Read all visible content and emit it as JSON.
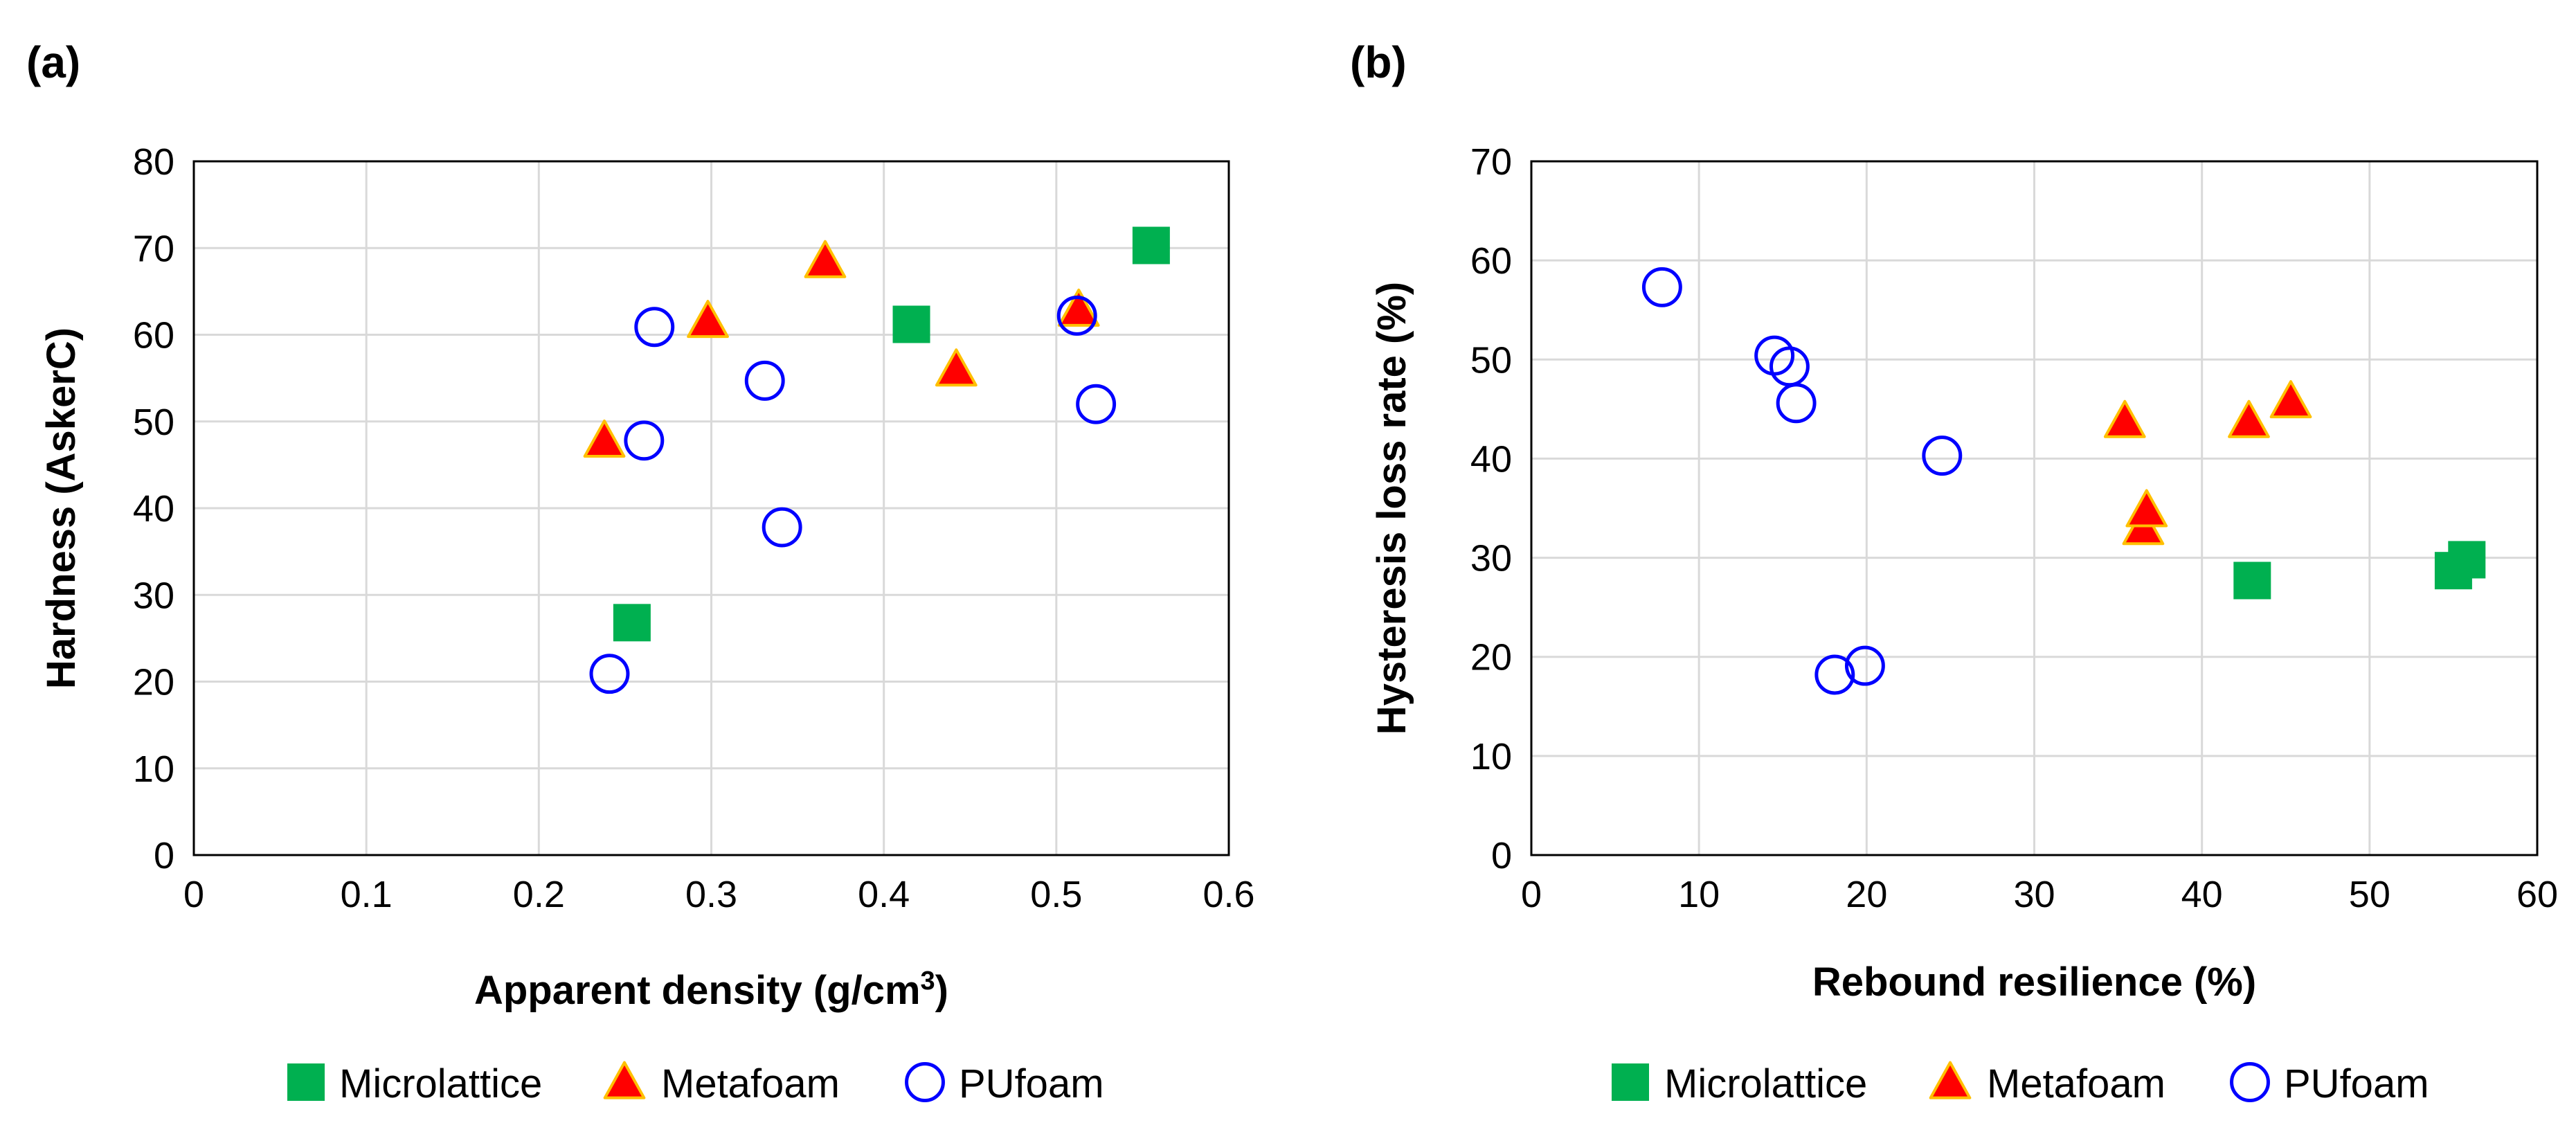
{
  "chart_data": [
    {
      "type": "scatter",
      "panel_label": "(a)",
      "xlabel": "Apparent density (g/cm",
      "xlabel_sup": "3",
      "xlabel_end": ")",
      "ylabel": "Hardness (AskerC)",
      "xlim": [
        0,
        0.6
      ],
      "ylim": [
        0,
        80
      ],
      "xticks": [
        "0",
        "0.1",
        "0.2",
        "0.3",
        "0.4",
        "0.5",
        "0.6"
      ],
      "yticks": [
        "0",
        "10",
        "20",
        "30",
        "40",
        "50",
        "60",
        "70",
        "80"
      ],
      "grid": true,
      "legend_position": "bottom",
      "series": [
        {
          "name": "Microlattice",
          "marker": "square",
          "color": "#00b050",
          "points": [
            [
              0.254,
              26.8
            ],
            [
              0.416,
              61.2
            ],
            [
              0.555,
              70.3
            ]
          ]
        },
        {
          "name": "Metafoam",
          "marker": "triangle",
          "color": "#ff0000",
          "points": [
            [
              0.238,
              47.8
            ],
            [
              0.298,
              61.6
            ],
            [
              0.366,
              68.5
            ],
            [
              0.442,
              56.0
            ],
            [
              0.513,
              62.9
            ]
          ]
        },
        {
          "name": "PUfoam",
          "marker": "circle",
          "color": "#0000ff",
          "points": [
            [
              0.241,
              20.9
            ],
            [
              0.261,
              47.8
            ],
            [
              0.267,
              60.9
            ],
            [
              0.331,
              54.7
            ],
            [
              0.341,
              37.8
            ],
            [
              0.512,
              62.2
            ],
            [
              0.523,
              52.0
            ]
          ]
        }
      ]
    },
    {
      "type": "scatter",
      "panel_label": "(b)",
      "xlabel": "Rebound resilience (%)",
      "ylabel": "Hysteresis loss rate (%)",
      "xlim": [
        0,
        60
      ],
      "ylim": [
        0,
        70
      ],
      "xticks": [
        "0",
        "10",
        "20",
        "30",
        "40",
        "50",
        "60"
      ],
      "yticks": [
        "0",
        "10",
        "20",
        "30",
        "40",
        "50",
        "60",
        "70"
      ],
      "grid": true,
      "legend_position": "bottom",
      "series": [
        {
          "name": "Microlattice",
          "marker": "square",
          "color": "#00b050",
          "points": [
            [
              43.0,
              27.7
            ],
            [
              55.0,
              28.7
            ],
            [
              55.8,
              29.8
            ]
          ]
        },
        {
          "name": "Metafoam",
          "marker": "triangle",
          "color": "#ff0000",
          "points": [
            [
              35.4,
              43.8
            ],
            [
              36.5,
              33.0
            ],
            [
              36.7,
              34.8
            ],
            [
              42.8,
              43.8
            ],
            [
              45.3,
              45.8
            ]
          ]
        },
        {
          "name": "PUfoam",
          "marker": "circle",
          "color": "#0000ff",
          "points": [
            [
              7.8,
              57.3
            ],
            [
              14.5,
              50.4
            ],
            [
              15.4,
              49.3
            ],
            [
              15.8,
              45.6
            ],
            [
              18.1,
              18.2
            ],
            [
              19.9,
              19.1
            ],
            [
              24.5,
              40.3
            ]
          ]
        }
      ]
    }
  ]
}
